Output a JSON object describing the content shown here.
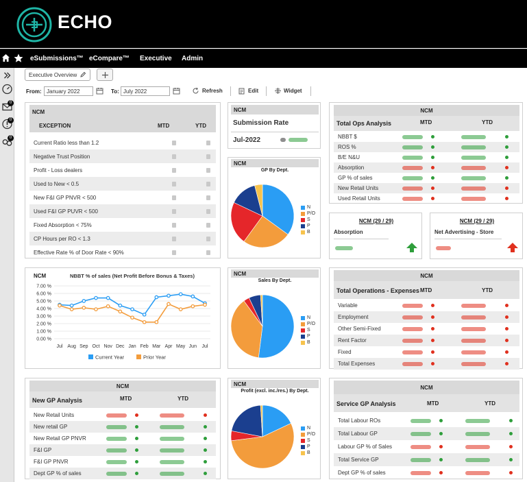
{
  "brand": {
    "name": "ECHO"
  },
  "nav": {
    "items": [
      "eSubmissions™",
      "eCompare™",
      "Executive",
      "Admin"
    ]
  },
  "rail": {
    "badges": [
      "0",
      "0",
      "0"
    ]
  },
  "tab": {
    "label": "Executive Overview"
  },
  "toolbar": {
    "from_label": "From:",
    "from_value": "January 2022",
    "to_label": "To:",
    "to_value": "July 2022",
    "refresh": "Refresh",
    "edit": "Edit",
    "widget": "Widget"
  },
  "exception_panel": {
    "title": "NCM",
    "col_label": "EXCEPTION",
    "col_mtd": "MTD",
    "col_ytd": "YTD",
    "rows": [
      "Current Ratio less than 1.2",
      "Negative Trust Position",
      "Profit - Loss dealers",
      "Used to New < 0.5",
      "New F&I GP PNVR < 500",
      "Used F&I GP PUVR < 500",
      "Fixed Absorption < 75%",
      "CP Hours per RO < 1.3",
      "Effective Rate % of Door Rate < 90%"
    ]
  },
  "submission_panel": {
    "title": "NCM",
    "label": "Submission Rate",
    "period": "Jul-2022"
  },
  "ops_panel": {
    "title": "NCM",
    "section": "Total Ops Analysis",
    "col_mtd": "MTD",
    "col_ytd": "YTD",
    "rows": [
      "NBBT $",
      "ROS %",
      "B/E N&U",
      "Absorption",
      "GP % of sales",
      "New Retail Units",
      "Used Retail Units"
    ],
    "status": [
      "green",
      "green",
      "green",
      "red",
      "green",
      "red",
      "red"
    ]
  },
  "absorption_card": {
    "title": "NCM (29 / 29)",
    "label": "Absorption",
    "color": "#2e9e3b"
  },
  "advertising_card": {
    "title": "NCM (29 / 29)",
    "label": "Net Advertising - Store",
    "color": "#e0301e"
  },
  "gp_dept_panel": {
    "title": "NCM",
    "chart_title": "GP By Dept.",
    "legend": [
      "N",
      "P/O",
      "S",
      "P",
      "B"
    ]
  },
  "sales_dept_panel": {
    "title": "NCM",
    "chart_title": "Sales By Dept.",
    "legend": [
      "N",
      "P/O",
      "S",
      "P",
      "B"
    ]
  },
  "profit_dept_panel": {
    "title": "NCM",
    "chart_title": "Profit (excl. inc./res.) By Dept.",
    "legend": [
      "N",
      "P/O",
      "S",
      "P",
      "B"
    ]
  },
  "nbbt_panel": {
    "title": "NCM"
  },
  "expenses_panel": {
    "title": "NCM",
    "section": "Total Operations - Expenses",
    "col_mtd": "MTD",
    "col_ytd": "YTD",
    "rows": [
      "Variable",
      "Employment",
      "Other Semi-Fixed",
      "Rent Factor",
      "Fixed",
      "Total Expenses"
    ]
  },
  "newgp_panel": {
    "title": "NCM",
    "section": "New GP Analysis",
    "col_mtd": "MTD",
    "col_ytd": "YTD",
    "rows": [
      "New Retail Units",
      "New retail GP",
      "New Retail GP PNVR",
      "F&I GP",
      "F&I GP PNVR",
      "Dept GP % of sales"
    ],
    "status": [
      "red",
      "green",
      "green",
      "green",
      "green",
      "green"
    ]
  },
  "service_panel": {
    "title": "NCM",
    "section": "Service GP Analysis",
    "col_mtd": "MTD",
    "col_ytd": "YTD",
    "rows": [
      "Total Labour ROs",
      "Total Labour GP",
      "Labour GP % of Sales",
      "Total Service GP",
      "Dept GP % of sales"
    ],
    "status": [
      "green",
      "green",
      "red",
      "green",
      "red"
    ]
  },
  "colors": {
    "green": "#2e9e3b",
    "red": "#e0301e",
    "current": "#2a9df4",
    "prior": "#f39c3c"
  },
  "chart_data": [
    {
      "type": "line",
      "title": "NBBT % of sales (Net Profit Before Bonus & Taxes)",
      "categories": [
        "Jul",
        "Aug",
        "Sep",
        "Oct",
        "Nov",
        "Dec",
        "Jan",
        "Feb",
        "Mar",
        "Apr",
        "May",
        "Jun",
        "Jul"
      ],
      "yticks": [
        "7.00 %",
        "6.00 %",
        "5.00 %",
        "4.00 %",
        "3.00 %",
        "2.00 %",
        "1.00 %",
        "0.00 %"
      ],
      "ylim": [
        0,
        7
      ],
      "series": [
        {
          "name": "Current Year",
          "color": "#2a9df4",
          "values": [
            4.5,
            4.4,
            5.0,
            5.4,
            5.4,
            4.4,
            3.9,
            3.2,
            5.5,
            5.7,
            5.9,
            5.6,
            4.7
          ]
        },
        {
          "name": "Prior Year",
          "color": "#f39c3c",
          "values": [
            4.4,
            3.9,
            4.1,
            3.9,
            4.3,
            3.6,
            2.8,
            2.2,
            2.2,
            4.6,
            3.9,
            4.3,
            4.5
          ]
        }
      ]
    },
    {
      "type": "pie",
      "title": "GP By Dept.",
      "labels": [
        "N",
        "P/O",
        "S",
        "P",
        "B"
      ],
      "values": [
        35,
        25,
        22,
        14,
        4
      ],
      "colors": [
        "#2a9df4",
        "#f39c3c",
        "#e5262a",
        "#1b3f8f",
        "#f7c34d"
      ]
    },
    {
      "type": "pie",
      "title": "Sales By Dept.",
      "labels": [
        "N",
        "P/O",
        "S",
        "P",
        "B"
      ],
      "values": [
        52,
        38,
        3,
        6,
        1
      ],
      "colors": [
        "#2a9df4",
        "#f39c3c",
        "#e5262a",
        "#1b3f8f",
        "#f7c34d"
      ]
    },
    {
      "type": "pie",
      "title": "Profit (excl. inc./res.) By Dept.",
      "labels": [
        "N",
        "P/O",
        "S",
        "P",
        "B"
      ],
      "values": [
        18,
        55,
        5,
        21,
        1
      ],
      "colors": [
        "#2a9df4",
        "#f39c3c",
        "#e5262a",
        "#1b3f8f",
        "#f7c34d"
      ]
    }
  ]
}
